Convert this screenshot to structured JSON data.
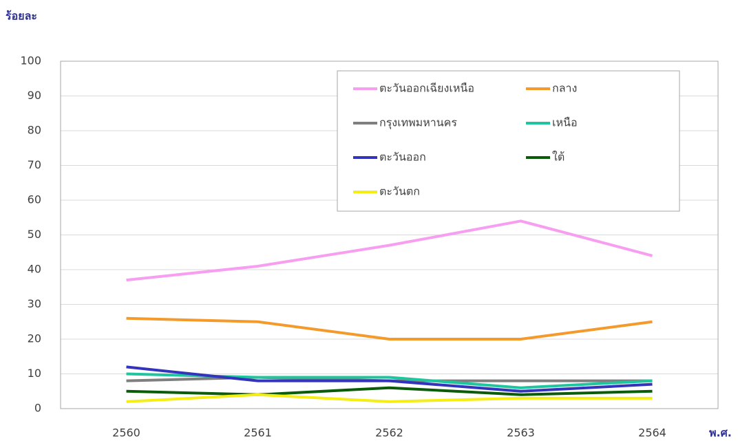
{
  "chart_data": {
    "type": "line",
    "y_axis_label": "ร้อยละ",
    "x_axis_label": "พ.ศ.",
    "categories": [
      "2560",
      "2561",
      "2562",
      "2563",
      "2564"
    ],
    "series": [
      {
        "name": "ตะวันออกเฉียงเหนือ",
        "color": "#f79ef0",
        "values": [
          37,
          41,
          47,
          54,
          44
        ]
      },
      {
        "name": "กลาง",
        "color": "#f39a2a",
        "values": [
          26,
          25,
          20,
          20,
          25
        ]
      },
      {
        "name": "กรุงเทพมหานคร",
        "color": "#7f7f7f",
        "values": [
          8,
          9,
          8,
          8,
          8
        ]
      },
      {
        "name": "เหนือ",
        "color": "#1fc59f",
        "values": [
          10,
          9,
          9,
          6,
          8
        ]
      },
      {
        "name": "ตะวันออก",
        "color": "#3333bb",
        "values": [
          12,
          8,
          8,
          5,
          7
        ]
      },
      {
        "name": "ใต้",
        "color": "#0a5c0a",
        "values": [
          5,
          4,
          6,
          4,
          5
        ]
      },
      {
        "name": "ตะวันตก",
        "color": "#f5ee16",
        "values": [
          2,
          4,
          2,
          3,
          3
        ]
      }
    ],
    "ylim": [
      0,
      100
    ],
    "yticks": [
      0,
      10,
      20,
      30,
      40,
      50,
      60,
      70,
      80,
      90,
      100
    ],
    "grid": true,
    "legend_position": "top-right"
  }
}
